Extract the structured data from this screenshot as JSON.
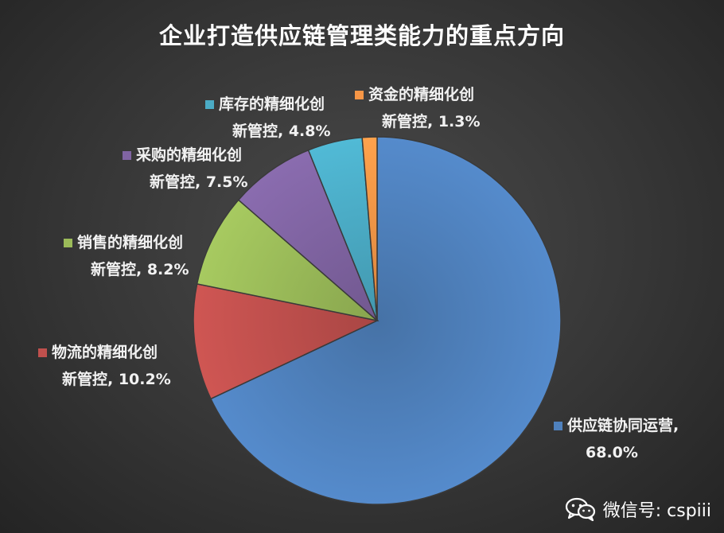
{
  "chart_data": {
    "type": "pie",
    "title": "企业打造供应链管理类能力的重点方向",
    "slices": [
      {
        "name": "供应链协同运营,",
        "value": 68.0,
        "label_line1": "供应链协同运营,",
        "label_line2": "68.0%",
        "color": "#4f81bd"
      },
      {
        "name": "物流的精细化创新管控",
        "value": 10.2,
        "label_line1": "物流的精细化创",
        "label_line2": "新管控, 10.2%",
        "color": "#c0504d"
      },
      {
        "name": "销售的精细化创新管控",
        "value": 8.2,
        "label_line1": "销售的精细化创",
        "label_line2": "新管控, 8.2%",
        "color": "#9bbb59"
      },
      {
        "name": "采购的精细化创新管控",
        "value": 7.5,
        "label_line1": "采购的精细化创",
        "label_line2": "新管控, 7.5%",
        "color": "#8064a2"
      },
      {
        "name": "库存的精细化创新管控",
        "value": 4.8,
        "label_line1": "库存的精细化创",
        "label_line2": "新管控, 4.8%",
        "color": "#4bacc6"
      },
      {
        "name": "资金的精细化创新管控",
        "value": 1.3,
        "label_line1": "资金的精细化创",
        "label_line2": "新管控, 1.3%",
        "color": "#f79646"
      }
    ]
  },
  "watermark": {
    "text": "微信号: cspiii",
    "icon": "wechat-icon"
  }
}
